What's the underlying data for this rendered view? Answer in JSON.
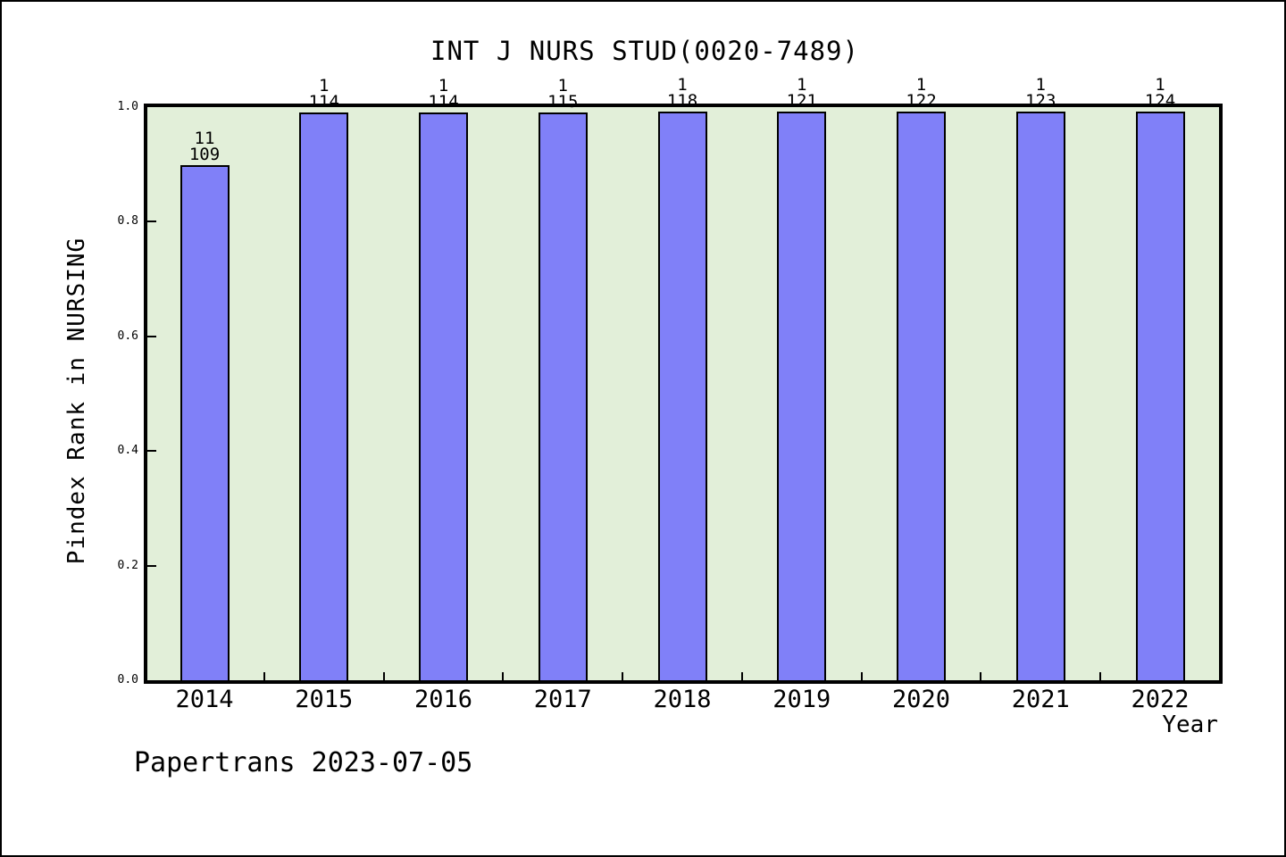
{
  "page": {
    "background": "#ffffff",
    "outer_border_color": "#000000"
  },
  "chart_data": {
    "type": "bar",
    "title": "INT J NURS STUD(0020-7489)",
    "xlabel": "Year",
    "ylabel": "Pindex Rank in NURSING",
    "footer": "Papertrans 2023-07-05",
    "categories": [
      "2014",
      "2015",
      "2016",
      "2017",
      "2018",
      "2019",
      "2020",
      "2021",
      "2022"
    ],
    "values": [
      0.899,
      0.991,
      0.991,
      0.991,
      0.992,
      0.992,
      0.992,
      0.992,
      0.992
    ],
    "bar_labels": [
      {
        "rank": "11",
        "total": "109"
      },
      {
        "rank": "1",
        "total": "114"
      },
      {
        "rank": "1",
        "total": "114"
      },
      {
        "rank": "1",
        "total": "115"
      },
      {
        "rank": "1",
        "total": "118"
      },
      {
        "rank": "1",
        "total": "121"
      },
      {
        "rank": "1",
        "total": "122"
      },
      {
        "rank": "1",
        "total": "123"
      },
      {
        "rank": "1",
        "total": "124"
      }
    ],
    "ylim": [
      0.0,
      1.0
    ],
    "ytick_labels": [
      "0.0",
      "0.2",
      "0.4",
      "0.6",
      "0.8",
      "1.0"
    ],
    "grid": false,
    "legend": false,
    "colors": {
      "bar_fill": "#8080f8",
      "bar_edge": "#000000",
      "plot_bg": "#e2efd9",
      "text": "#000000"
    }
  }
}
